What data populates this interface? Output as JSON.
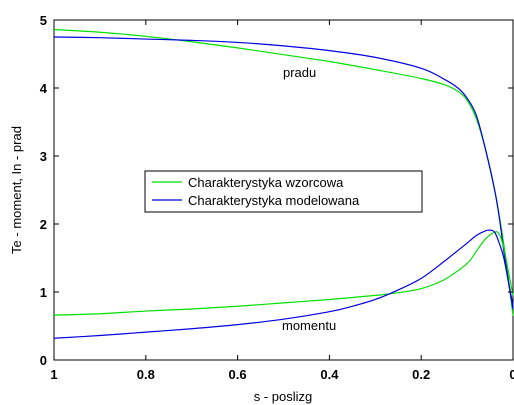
{
  "chart_data": {
    "type": "line",
    "xlabel": "s - poslizg",
    "ylabel": "Te - moment, In - prad",
    "xlim": [
      0,
      1
    ],
    "ylim": [
      0,
      5
    ],
    "x_reversed": true,
    "x_ticks": [
      1,
      0.8,
      0.6,
      0.4,
      0.2,
      0
    ],
    "x_tick_labels": [
      "1",
      "0.8",
      "0.6",
      "0.4",
      "0.2",
      "0"
    ],
    "y_ticks": [
      0,
      1,
      2,
      3,
      4,
      5
    ],
    "y_tick_labels": [
      "0",
      "1",
      "2",
      "3",
      "4",
      "5"
    ],
    "grid": false,
    "legend_position": "center-left",
    "annotations": [
      {
        "text": "pradu",
        "x": 0.44,
        "y": 4.2
      },
      {
        "text": "momentu",
        "x": 0.42,
        "y": 0.22
      }
    ],
    "series": [
      {
        "name": "Charakterystyka wzorcowa",
        "color": "#00e000",
        "x": [
          1.0,
          0.9,
          0.8,
          0.7,
          0.6,
          0.5,
          0.4,
          0.3,
          0.2,
          0.15,
          0.12,
          0.1,
          0.08,
          0.06,
          0.04,
          0.02,
          0.0
        ],
        "y": [
          4.86,
          4.82,
          4.76,
          4.68,
          4.59,
          4.49,
          4.39,
          4.27,
          4.14,
          4.05,
          3.95,
          3.82,
          3.55,
          3.1,
          2.5,
          1.7,
          0.65
        ]
      },
      {
        "name": "Charakterystyka modelowana",
        "color": "#0000e0",
        "x": [
          1.0,
          0.9,
          0.8,
          0.7,
          0.6,
          0.5,
          0.4,
          0.3,
          0.2,
          0.15,
          0.12,
          0.1,
          0.08,
          0.06,
          0.04,
          0.03,
          0.02,
          0.01,
          0.0
        ],
        "y": [
          4.75,
          4.74,
          4.72,
          4.7,
          4.67,
          4.62,
          4.55,
          4.45,
          4.29,
          4.13,
          4.0,
          3.85,
          3.6,
          3.1,
          2.5,
          2.1,
          1.6,
          1.15,
          0.75
        ]
      },
      {
        "name": "",
        "color": "#00e000",
        "x": [
          1.0,
          0.9,
          0.8,
          0.7,
          0.6,
          0.5,
          0.4,
          0.3,
          0.25,
          0.2,
          0.15,
          0.1,
          0.08,
          0.06,
          0.04,
          0.03,
          0.02,
          0.01,
          0.0
        ],
        "y": [
          0.66,
          0.68,
          0.72,
          0.75,
          0.79,
          0.84,
          0.89,
          0.95,
          0.99,
          1.05,
          1.18,
          1.42,
          1.6,
          1.78,
          1.88,
          1.85,
          1.65,
          1.3,
          0.95
        ]
      },
      {
        "name": "",
        "color": "#0000e0",
        "x": [
          1.0,
          0.9,
          0.8,
          0.7,
          0.6,
          0.5,
          0.4,
          0.35,
          0.3,
          0.25,
          0.2,
          0.15,
          0.1,
          0.08,
          0.06,
          0.05,
          0.04,
          0.03,
          0.02,
          0.01,
          0.0
        ],
        "y": [
          0.32,
          0.36,
          0.41,
          0.46,
          0.52,
          0.6,
          0.71,
          0.79,
          0.89,
          1.03,
          1.2,
          1.45,
          1.72,
          1.83,
          1.9,
          1.91,
          1.88,
          1.72,
          1.5,
          1.15,
          0.8
        ]
      }
    ]
  }
}
